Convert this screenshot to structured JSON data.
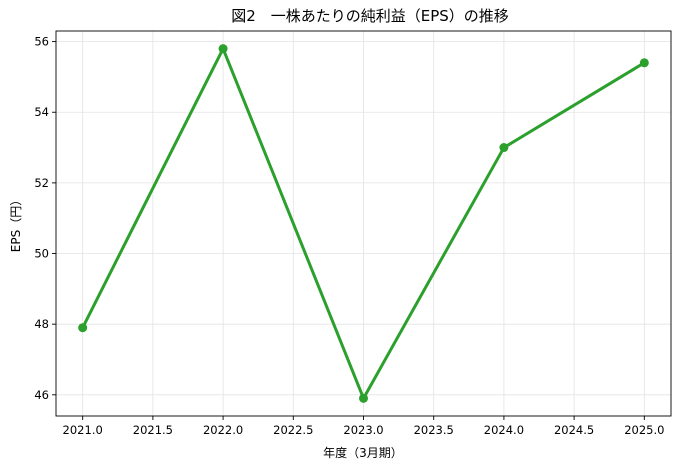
{
  "chart_data": {
    "type": "line",
    "title": "図2　一株あたりの純利益（EPS）の推移",
    "xlabel": "年度（3月期）",
    "ylabel": "EPS（円）",
    "x": [
      2021,
      2022,
      2023,
      2024,
      2025
    ],
    "series": [
      {
        "values": [
          47.9,
          55.8,
          45.9,
          53.0,
          55.4
        ],
        "color": "#2ca02c"
      }
    ],
    "xlim": [
      2020.81,
      2025.19
    ],
    "ylim": [
      45.4,
      56.3
    ],
    "xticks": [
      "2021.0",
      "2021.5",
      "2022.0",
      "2022.5",
      "2023.0",
      "2023.5",
      "2024.0",
      "2024.5",
      "2025.0"
    ],
    "yticks": [
      "46",
      "48",
      "50",
      "52",
      "54",
      "56"
    ],
    "grid": true,
    "legend": "none"
  }
}
